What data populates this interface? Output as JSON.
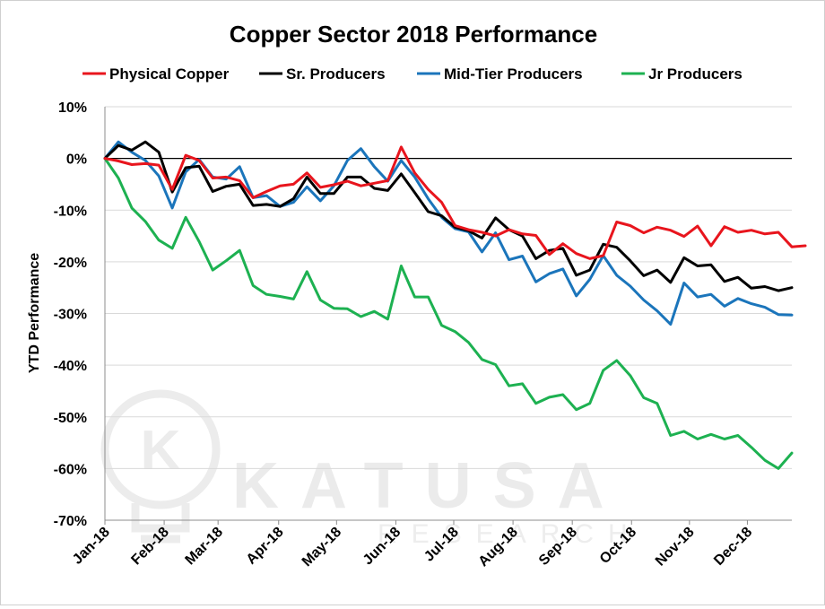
{
  "chart_data": {
    "type": "line",
    "title": "Copper Sector 2018 Performance",
    "ylabel": "YTD Performance",
    "xlabel": "",
    "ylim": [
      -70,
      10
    ],
    "yticks": [
      10,
      0,
      -10,
      -20,
      -30,
      -40,
      -50,
      -60,
      -70
    ],
    "ytick_labels": [
      "10%",
      "0%",
      "-10%",
      "-20%",
      "-30%",
      "-40%",
      "-50%",
      "-60%",
      "-70%"
    ],
    "xlim": [
      0,
      51
    ],
    "xtick_labels": [
      "Jan-18",
      "Feb-18",
      "Mar-18",
      "Apr-18",
      "May-18",
      "Jun-18",
      "Jul-18",
      "Aug-18",
      "Sep-18",
      "Oct-18",
      "Nov-18",
      "Dec-18"
    ],
    "xtick_positions": [
      0,
      4.4,
      8.4,
      12.9,
      17.2,
      21.6,
      25.9,
      30.3,
      34.7,
      39.1,
      43.4,
      47.7
    ],
    "zero_line": true,
    "grid": true,
    "legend_position": "top",
    "series": [
      {
        "name": "Physical Copper",
        "color": "#e8151d",
        "values": [
          0,
          -0.5,
          -1.2,
          -1.0,
          -1.3,
          -6.0,
          0.6,
          -0.4,
          -3.8,
          -3.6,
          -4.3,
          -7.6,
          -6.4,
          -5.3,
          -5.0,
          -2.8,
          -5.6,
          -5.1,
          -4.4,
          -5.3,
          -4.8,
          -4.3,
          2.2,
          -2.8,
          -6.0,
          -8.5,
          -13.0,
          -13.8,
          -14.3,
          -15.0,
          -13.8,
          -14.6,
          -14.9,
          -18.6,
          -16.5,
          -18.4,
          -19.4,
          -18.8,
          -12.3,
          -13.0,
          -14.4,
          -13.3,
          -13.9,
          -15.1,
          -13.1,
          -16.9,
          -13.2,
          -14.3,
          -13.9,
          -14.6,
          -14.3,
          -17.1,
          -16.9
        ]
      },
      {
        "name": "Sr. Producers",
        "color": "#000000",
        "values": [
          0,
          2.5,
          1.6,
          3.2,
          1.2,
          -6.5,
          -1.8,
          -1.5,
          -6.4,
          -5.4,
          -5.0,
          -9.1,
          -8.9,
          -9.3,
          -7.8,
          -3.6,
          -6.8,
          -6.8,
          -3.6,
          -3.6,
          -5.8,
          -6.2,
          -3.0,
          -6.6,
          -10.3,
          -11.1,
          -13.3,
          -14.0,
          -15.4,
          -11.5,
          -13.8,
          -15.0,
          -19.4,
          -17.8,
          -17.4,
          -22.6,
          -21.6,
          -16.6,
          -17.2,
          -19.8,
          -22.7,
          -21.6,
          -24.0,
          -19.2,
          -20.8,
          -20.6,
          -23.8,
          -23.0,
          -25.1,
          -24.8,
          -25.6,
          -25.0
        ]
      },
      {
        "name": "Mid-Tier Producers",
        "color": "#1b75bb",
        "values": [
          0,
          3.2,
          1.2,
          -0.4,
          -3.4,
          -9.6,
          -2.6,
          -0.2,
          -3.6,
          -4.0,
          -1.6,
          -7.6,
          -7.2,
          -9.3,
          -8.5,
          -5.5,
          -8.2,
          -5.3,
          -0.4,
          1.9,
          -1.6,
          -4.4,
          -0.4,
          -3.6,
          -7.8,
          -11.4,
          -13.6,
          -14.2,
          -18.1,
          -14.4,
          -19.6,
          -18.9,
          -23.9,
          -22.3,
          -21.4,
          -26.6,
          -23.4,
          -18.8,
          -22.6,
          -24.7,
          -27.4,
          -29.5,
          -32.1,
          -24.1,
          -26.8,
          -26.3,
          -28.6,
          -27.1,
          -28.1,
          -28.8,
          -30.2,
          -30.3
        ]
      },
      {
        "name": "Jr Producers",
        "color": "#1db151",
        "values": [
          0,
          -3.8,
          -9.6,
          -12.2,
          -15.8,
          -17.4,
          -11.4,
          -16.1,
          -21.6,
          -19.8,
          -17.8,
          -24.6,
          -26.3,
          -26.7,
          -27.2,
          -21.9,
          -27.4,
          -29.0,
          -29.1,
          -30.6,
          -29.6,
          -31.1,
          -20.8,
          -26.8,
          -26.8,
          -32.3,
          -33.5,
          -35.6,
          -38.9,
          -39.9,
          -44.0,
          -43.6,
          -47.4,
          -46.2,
          -45.7,
          -48.6,
          -47.4,
          -41.0,
          -39.1,
          -42.0,
          -46.3,
          -47.4,
          -53.6,
          -52.8,
          -54.3,
          -53.4,
          -54.3,
          -53.6,
          -55.9,
          -58.4,
          -60.0,
          -57.0
        ]
      }
    ]
  },
  "watermark": {
    "brand": "KATUSA",
    "sub": "RESEARCH",
    "logo_letter": "K"
  }
}
